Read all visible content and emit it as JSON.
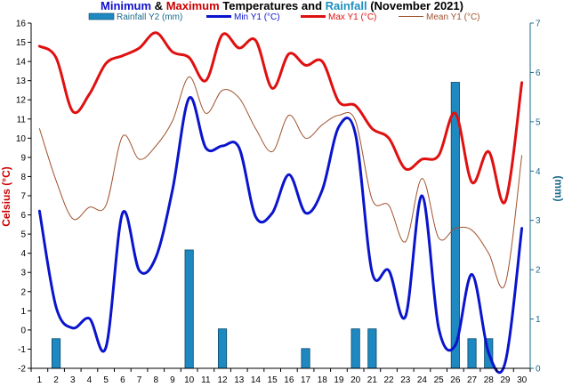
{
  "chart_data": {
    "type": "line",
    "title_parts": [
      {
        "text": "Minimum",
        "color": "#1010cc"
      },
      {
        "text": " & ",
        "color": "#000000"
      },
      {
        "text": "Maximum",
        "color": "#cc0000"
      },
      {
        "text": " Temperatures and ",
        "color": "#000000"
      },
      {
        "text": "Rainfall",
        "color": "#1e90c0"
      },
      {
        "text": " (November 2021)",
        "color": "#000000"
      }
    ],
    "ylabel": "Celsius (°C)",
    "y2label": "(mm)",
    "ylim": [
      -2,
      16
    ],
    "y2lim": [
      0,
      7
    ],
    "yticks": [
      "-2",
      "-1",
      "0",
      "1",
      "2",
      "3",
      "4",
      "5",
      "6",
      "7",
      "8",
      "9",
      "10",
      "11",
      "12",
      "13",
      "14",
      "15",
      "16"
    ],
    "y2ticks": [
      "0",
      "1",
      "2",
      "3",
      "4",
      "5",
      "6",
      "7"
    ],
    "x": [
      "1",
      "2",
      "3",
      "4",
      "5",
      "6",
      "7",
      "8",
      "9",
      "10",
      "11",
      "12",
      "13",
      "14",
      "15",
      "16",
      "17",
      "18",
      "19",
      "20",
      "21",
      "22",
      "23",
      "24",
      "25",
      "26",
      "27",
      "28",
      "29",
      "30"
    ],
    "grid": false,
    "legend_placement": "top",
    "series": [
      {
        "name": "Rainfall Y2 (mm)",
        "kind": "bar",
        "axis": "y2",
        "color": "#1e88c0",
        "values": [
          0,
          0.6,
          0,
          0,
          0,
          0,
          0,
          0,
          0,
          2.4,
          0,
          0.8,
          0,
          0,
          0,
          0,
          0.4,
          0,
          0,
          0.8,
          0.8,
          0,
          0,
          0,
          0,
          5.8,
          0.6,
          0.6,
          0,
          0
        ]
      },
      {
        "name": "Min Y1 (°C)",
        "kind": "line",
        "axis": "y",
        "color": "#0a14cc",
        "width": 3,
        "values": [
          6.2,
          1.2,
          0.1,
          0.6,
          -0.9,
          6.1,
          3.1,
          3.8,
          7.3,
          12.1,
          9.5,
          9.6,
          9.5,
          5.9,
          6.1,
          8.1,
          6.1,
          7.3,
          10.6,
          10.2,
          3.0,
          3.1,
          0.7,
          7.0,
          0.1,
          -0.8,
          2.9,
          -1.2,
          -1.7,
          5.3
        ]
      },
      {
        "name": "Max Y1 (°C)",
        "kind": "line",
        "axis": "y",
        "color": "#e01010",
        "width": 3,
        "values": [
          14.8,
          14.2,
          11.4,
          12.3,
          13.9,
          14.3,
          14.7,
          15.5,
          14.5,
          14.2,
          13.0,
          15.4,
          14.7,
          15.1,
          12.6,
          14.4,
          13.8,
          14.0,
          11.9,
          11.7,
          10.5,
          10.0,
          8.4,
          8.9,
          9.1,
          11.3,
          7.7,
          9.3,
          6.7,
          12.9
        ]
      },
      {
        "name": "Mean Y1 (°C)",
        "kind": "line",
        "axis": "y",
        "color": "#a0522d",
        "width": 1,
        "values": [
          10.5,
          7.8,
          5.8,
          6.4,
          6.5,
          10.1,
          8.9,
          9.6,
          10.9,
          13.2,
          11.3,
          12.5,
          12.1,
          10.5,
          9.3,
          11.2,
          10.0,
          10.7,
          11.2,
          10.9,
          6.8,
          6.5,
          4.6,
          7.9,
          4.8,
          5.3,
          5.2,
          4.0,
          2.4,
          9.1
        ]
      }
    ]
  }
}
